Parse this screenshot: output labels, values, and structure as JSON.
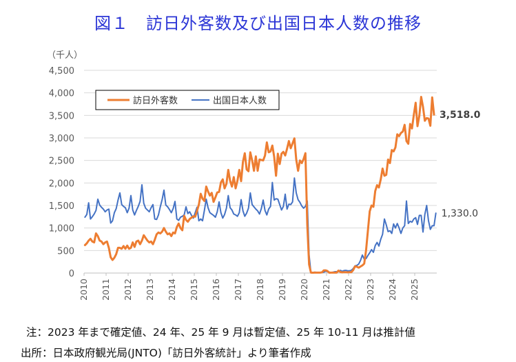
{
  "title": "図１　訪日外客数及び出国日本人数の推移",
  "notes": {
    "note": "注：2023 年まで確定値、24 年、25 年 9 月は暫定値、25 年 10-11 月は推計値",
    "source": "出所：日本政府観光局(JNTO)「訪日外客統計」より筆者作成"
  },
  "colors": {
    "inbound": "#ED7D31",
    "outbound": "#4472C4",
    "title": "#2B35D6",
    "grid": "#D9D9D9",
    "text": "#595959"
  },
  "chart_data": {
    "type": "line",
    "title": "図１　訪日外客数及び出国日本人数の推移",
    "ylabel": "（千人）",
    "xlabel": "",
    "ylim": [
      0,
      4500
    ],
    "yticks": [
      "0",
      "500",
      "1,000",
      "1,500",
      "2,000",
      "2,500",
      "3,000",
      "3,500",
      "4,000",
      "4,500"
    ],
    "year_labels": [
      "2010",
      "2011",
      "2012",
      "2013",
      "2014",
      "2015",
      "2016",
      "2017",
      "2018",
      "2019",
      "2020",
      "2021",
      "2022",
      "2023",
      "2024",
      "2025"
    ],
    "x_start": "2010-01",
    "frequency": "monthly",
    "grid": "horizontal",
    "legend_position": "top-left",
    "series": [
      {
        "name": "訪日外客数",
        "end_label": "3,518.0",
        "values": [
          620,
          660,
          720,
          760,
          700,
          680,
          880,
          820,
          720,
          700,
          640,
          680,
          700,
          560,
          350,
          290,
          340,
          420,
          560,
          560,
          540,
          600,
          540,
          610,
          540,
          560,
          680,
          580,
          700,
          720,
          640,
          720,
          840,
          780,
          720,
          680,
          700,
          640,
          740,
          860,
          900,
          880,
          920,
          1000,
          920,
          860,
          880,
          820,
          900,
          880,
          1020,
          1100,
          1000,
          950,
          1270,
          1180,
          1140,
          1200,
          1230,
          1260,
          1250,
          1380,
          1520,
          1760,
          1650,
          1600,
          1920,
          1810,
          1720,
          1780,
          1580,
          1680,
          1790,
          1800,
          2010,
          2080,
          1880,
          1980,
          2290,
          2050,
          1920,
          2130,
          1880,
          2050,
          2290,
          2040,
          2470,
          2660,
          2300,
          2260,
          2680,
          2500,
          2270,
          2590,
          2270,
          2520,
          2510,
          2500,
          2610,
          2900,
          2680,
          2700,
          2830,
          2580,
          2160,
          2650,
          2420,
          2650,
          2690,
          2610,
          2760,
          2930,
          2770,
          2880,
          2990,
          2520,
          2270,
          2500,
          2440,
          2530,
          2660,
          1080,
          190,
          10,
          8,
          10,
          10,
          10,
          10,
          15,
          60,
          60,
          45,
          8,
          10,
          10,
          10,
          10,
          55,
          25,
          15,
          20,
          20,
          15,
          20,
          20,
          65,
          150,
          140,
          120,
          145,
          170,
          210,
          500,
          935,
          1370,
          1500,
          1470,
          1820,
          1950,
          1900,
          2080,
          2320,
          2160,
          2180,
          2520,
          2440,
          2730,
          2700,
          2790,
          3080,
          3040,
          3110,
          3140,
          3290,
          2930,
          2870,
          3310,
          3210,
          3510,
          3780,
          3260,
          3490,
          3910,
          3690,
          3380,
          3440,
          3430,
          3270,
          3900,
          3518
        ]
      },
      {
        "name": "出国日本人数",
        "end_label": "1,330.0",
        "values": [
          1240,
          1300,
          1560,
          1200,
          1250,
          1310,
          1390,
          1640,
          1510,
          1460,
          1420,
          1360,
          1400,
          1420,
          1110,
          1160,
          1340,
          1430,
          1620,
          1780,
          1520,
          1480,
          1450,
          1340,
          1440,
          1720,
          1400,
          1290,
          1390,
          1480,
          1590,
          1960,
          1550,
          1440,
          1400,
          1360,
          1450,
          1520,
          1200,
          1190,
          1290,
          1470,
          1630,
          1840,
          1510,
          1470,
          1410,
          1340,
          1430,
          1590,
          1200,
          1170,
          1240,
          1260,
          1290,
          1470,
          1320,
          1360,
          1280,
          1220,
          1340,
          1460,
          1160,
          1200,
          1160,
          1390,
          1640,
          1450,
          1340,
          1310,
          1280,
          1240,
          1360,
          1580,
          1340,
          1220,
          1300,
          1440,
          1720,
          1450,
          1400,
          1310,
          1290,
          1260,
          1340,
          1630,
          1380,
          1260,
          1330,
          1440,
          1780,
          1520,
          1470,
          1420,
          1380,
          1310,
          1430,
          1620,
          1390,
          1290,
          1420,
          1480,
          2010,
          1620,
          1650,
          1640,
          1520,
          1400,
          1480,
          1750,
          1420,
          1530,
          1520,
          1580,
          2110,
          1780,
          1630,
          1570,
          1490,
          1440,
          1480,
          1600,
          400,
          5,
          10,
          20,
          15,
          10,
          10,
          10,
          20,
          40,
          30,
          20,
          10,
          20,
          30,
          30,
          35,
          60,
          40,
          55,
          60,
          50,
          50,
          60,
          100,
          160,
          170,
          200,
          280,
          400,
          310,
          320,
          390,
          450,
          520,
          460,
          610,
          680,
          600,
          750,
          860,
          1200,
          1070,
          920,
          940,
          880,
          1090,
          1000,
          1100,
          1000,
          880,
          1000,
          1050,
          1600,
          1100,
          1150,
          1130,
          1200,
          1230,
          1080,
          1280,
          1280,
          910,
          1300,
          1500,
          1160,
          970,
          1050,
          1050,
          1330
        ]
      }
    ]
  }
}
